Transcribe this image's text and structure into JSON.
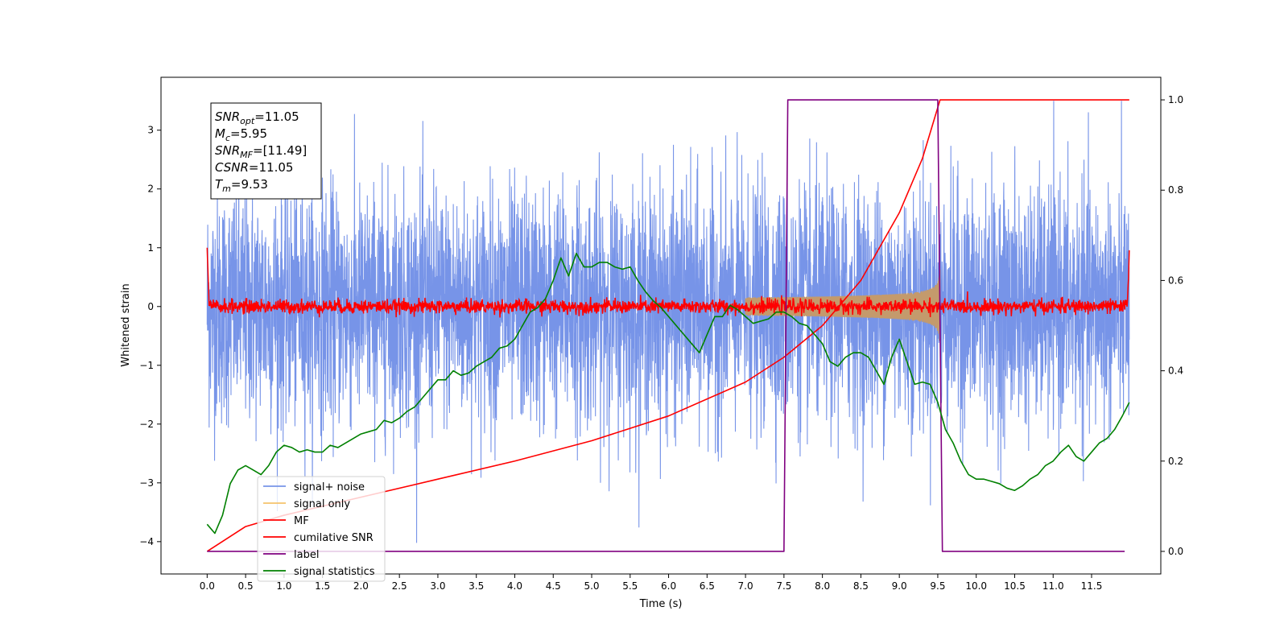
{
  "chart_data": {
    "type": "line",
    "title": "",
    "xlabel": "Time (s)",
    "ylabel": "Whitened strain",
    "xlim": [
      -0.6,
      12.4
    ],
    "ylim_left": [
      -4.55,
      3.9
    ],
    "ylim_right": [
      -0.05,
      1.05
    ],
    "x_ticks": [
      "0.0",
      "0.5",
      "1.0",
      "1.5",
      "2.0",
      "2.5",
      "3.0",
      "3.5",
      "4.0",
      "4.5",
      "5.0",
      "5.5",
      "6.0",
      "6.5",
      "7.0",
      "7.5",
      "8.0",
      "8.5",
      "9.0",
      "9.5",
      "10.0",
      "10.5",
      "11.0",
      "11.5"
    ],
    "y_ticks_left": [
      "−4",
      "−3",
      "−2",
      "−1",
      "0",
      "1",
      "2",
      "3"
    ],
    "y_ticks_right": [
      "0.0",
      "0.2",
      "0.4",
      "0.6",
      "0.8",
      "1.0"
    ],
    "grid": false,
    "legend_position": "lower-left",
    "annotation": {
      "lines": [
        {
          "sym": "SNR",
          "sub": "opt",
          "val": "=11.05"
        },
        {
          "sym": "M",
          "sub": "c",
          "val": "=5.95"
        },
        {
          "sym": "SNR",
          "sub": "MF",
          "val": "=[11.49]"
        },
        {
          "sym": "CSNR",
          "sub": "",
          "val": "=11.05"
        },
        {
          "sym": "T",
          "sub": "m",
          "val": "=9.53"
        }
      ]
    },
    "series": [
      {
        "name": "signal+ noise",
        "color": "#7794e8",
        "axis": "left",
        "kind": "noise",
        "x_range": [
          0,
          11.99
        ],
        "amplitude_typical": 1.0,
        "max": 3.5,
        "min": -4.15
      },
      {
        "name": "signal only",
        "color": "#f5c26b",
        "axis": "left",
        "kind": "chirp",
        "x_range": [
          7.0,
          9.53
        ],
        "peak_amplitude": 0.75
      },
      {
        "name": "MF",
        "color": "#ff0000",
        "axis": "left",
        "kind": "mf",
        "x_range": [
          0,
          11.99
        ],
        "amplitude_typical": 0.1,
        "start": 1.0,
        "end": 0.95
      },
      {
        "name": "cumilative SNR",
        "color": "#ff0000",
        "axis": "right",
        "x": [
          0,
          0.5,
          1.0,
          2.0,
          3.0,
          4.0,
          5.0,
          6.0,
          7.0,
          7.5,
          8.0,
          8.5,
          9.0,
          9.3,
          9.53,
          11.99
        ],
        "y": [
          0.0,
          0.055,
          0.08,
          0.12,
          0.16,
          0.2,
          0.245,
          0.3,
          0.375,
          0.43,
          0.5,
          0.6,
          0.75,
          0.87,
          1.0,
          1.0
        ]
      },
      {
        "name": "label",
        "color": "#800080",
        "axis": "right",
        "x": [
          0,
          7.5,
          7.55,
          9.5,
          9.56,
          11.93
        ],
        "y": [
          0,
          0,
          1,
          1,
          0,
          0
        ]
      },
      {
        "name": "signal statistics",
        "color": "#008000",
        "axis": "right",
        "x": [
          0,
          0.1,
          0.2,
          0.3,
          0.4,
          0.5,
          0.6,
          0.7,
          0.8,
          0.9,
          1.0,
          1.1,
          1.2,
          1.3,
          1.4,
          1.5,
          1.6,
          1.7,
          1.8,
          1.9,
          2.0,
          2.1,
          2.2,
          2.3,
          2.4,
          2.5,
          2.6,
          2.7,
          2.8,
          2.9,
          3.0,
          3.1,
          3.2,
          3.3,
          3.4,
          3.5,
          3.6,
          3.7,
          3.8,
          3.9,
          4.0,
          4.1,
          4.2,
          4.3,
          4.4,
          4.5,
          4.6,
          4.7,
          4.8,
          4.9,
          5.0,
          5.1,
          5.2,
          5.3,
          5.4,
          5.5,
          5.6,
          5.7,
          5.8,
          5.9,
          6.0,
          6.1,
          6.2,
          6.3,
          6.4,
          6.5,
          6.6,
          6.7,
          6.8,
          6.9,
          7.0,
          7.1,
          7.2,
          7.3,
          7.4,
          7.5,
          7.6,
          7.7,
          7.8,
          7.9,
          8.0,
          8.1,
          8.2,
          8.3,
          8.4,
          8.5,
          8.6,
          8.7,
          8.8,
          8.9,
          9.0,
          9.1,
          9.2,
          9.3,
          9.4,
          9.5,
          9.6,
          9.7,
          9.8,
          9.9,
          10.0,
          10.1,
          10.2,
          10.3,
          10.4,
          10.5,
          10.6,
          10.7,
          10.8,
          10.9,
          11.0,
          11.1,
          11.2,
          11.3,
          11.4,
          11.5,
          11.6,
          11.7,
          11.8,
          11.9,
          11.99
        ],
        "y": [
          0.06,
          0.04,
          0.08,
          0.15,
          0.18,
          0.19,
          0.18,
          0.17,
          0.19,
          0.22,
          0.235,
          0.23,
          0.22,
          0.225,
          0.22,
          0.22,
          0.235,
          0.23,
          0.24,
          0.25,
          0.26,
          0.265,
          0.27,
          0.29,
          0.285,
          0.295,
          0.31,
          0.32,
          0.34,
          0.36,
          0.38,
          0.38,
          0.4,
          0.39,
          0.395,
          0.41,
          0.42,
          0.43,
          0.45,
          0.455,
          0.47,
          0.5,
          0.53,
          0.54,
          0.56,
          0.6,
          0.65,
          0.61,
          0.66,
          0.63,
          0.63,
          0.64,
          0.64,
          0.63,
          0.625,
          0.63,
          0.6,
          0.575,
          0.555,
          0.54,
          0.52,
          0.5,
          0.48,
          0.46,
          0.44,
          0.48,
          0.52,
          0.52,
          0.545,
          0.535,
          0.52,
          0.505,
          0.51,
          0.515,
          0.53,
          0.53,
          0.52,
          0.505,
          0.5,
          0.48,
          0.46,
          0.42,
          0.41,
          0.43,
          0.44,
          0.44,
          0.43,
          0.4,
          0.37,
          0.43,
          0.47,
          0.42,
          0.37,
          0.375,
          0.37,
          0.33,
          0.27,
          0.24,
          0.2,
          0.17,
          0.16,
          0.16,
          0.155,
          0.15,
          0.14,
          0.135,
          0.145,
          0.16,
          0.17,
          0.19,
          0.2,
          0.22,
          0.235,
          0.21,
          0.2,
          0.22,
          0.24,
          0.25,
          0.27,
          0.3,
          0.33
        ]
      }
    ]
  }
}
